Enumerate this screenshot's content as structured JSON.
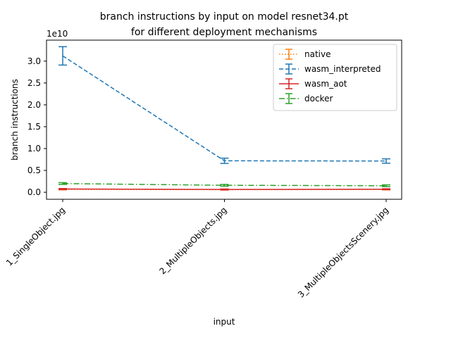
{
  "chart_data": {
    "type": "line",
    "title_line1": "branch instructions by input on model resnet34.pt",
    "title_line2": "for different deployment mechanisms",
    "xlabel": "input",
    "ylabel": "branch instructions",
    "y_offset_label": "1e10",
    "categories": [
      "1_SingleObject.jpg",
      "2_MultipleObjects.jpg",
      "3_MultipleObjectsScenery.jpg"
    ],
    "y_ticks": [
      0.0,
      0.5,
      1.0,
      1.5,
      2.0,
      2.5,
      3.0
    ],
    "y_tick_labels": [
      "0.0",
      "0.5",
      "1.0",
      "1.5",
      "2.0",
      "2.5",
      "3.0"
    ],
    "ylim": [
      -0.16,
      3.48
    ],
    "y_scale_note": "values in units of 1e10",
    "grid": false,
    "legend_position": "top-right",
    "series": [
      {
        "name": "native",
        "color": "#ff7f0e",
        "dash": "dotted",
        "values": [
          0.065,
          0.06,
          0.065
        ],
        "errors": [
          0.01,
          0.01,
          0.01
        ]
      },
      {
        "name": "wasm_interpreted",
        "color": "#1f77b4",
        "dash": "dashed",
        "values": [
          3.12,
          0.72,
          0.715
        ],
        "errors": [
          0.21,
          0.06,
          0.05
        ]
      },
      {
        "name": "wasm_aot",
        "color": "#d62728",
        "dash": "solid",
        "values": [
          0.075,
          0.065,
          0.07
        ],
        "errors": [
          0.01,
          0.01,
          0.01
        ]
      },
      {
        "name": "docker",
        "color": "#2ca02c",
        "dash": "dashdot",
        "values": [
          0.2,
          0.16,
          0.15
        ],
        "errors": [
          0.02,
          0.02,
          0.02
        ]
      }
    ]
  }
}
